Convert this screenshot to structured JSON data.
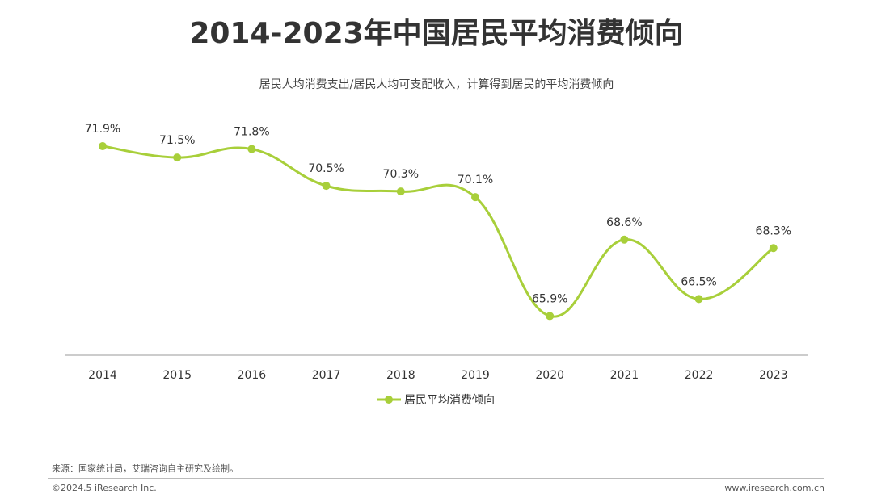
{
  "title": "2014-2023年中国居民平均消费倾向",
  "subtitle": "居民人均消费支出/居民人均可支配收入，计算得到居民的平均消费倾向",
  "source": "来源：国家统计局，艾瑞咨询自主研究及绘制。",
  "copyright": "©2024.5 iResearch Inc.",
  "website": "www.iresearch.com.cn",
  "colors": {
    "line": "#a8cf3a",
    "axis": "#999999",
    "text": "#333333"
  },
  "chart_data": {
    "type": "line",
    "title": "2014-2023年中国居民平均消费倾向",
    "categories": [
      "2014",
      "2015",
      "2016",
      "2017",
      "2018",
      "2019",
      "2020",
      "2021",
      "2022",
      "2023"
    ],
    "series": [
      {
        "name": "居民平均消费倾向",
        "values": [
          71.9,
          71.5,
          71.8,
          70.5,
          70.3,
          70.1,
          65.9,
          68.6,
          66.5,
          68.3
        ],
        "labels": [
          "71.9%",
          "71.5%",
          "71.8%",
          "70.5%",
          "70.3%",
          "70.1%",
          "65.9%",
          "68.6%",
          "66.5%",
          "68.3%"
        ]
      }
    ],
    "ylim": [
      64.8,
      72.5
    ],
    "grid": false,
    "legend_position": "bottom-center"
  }
}
